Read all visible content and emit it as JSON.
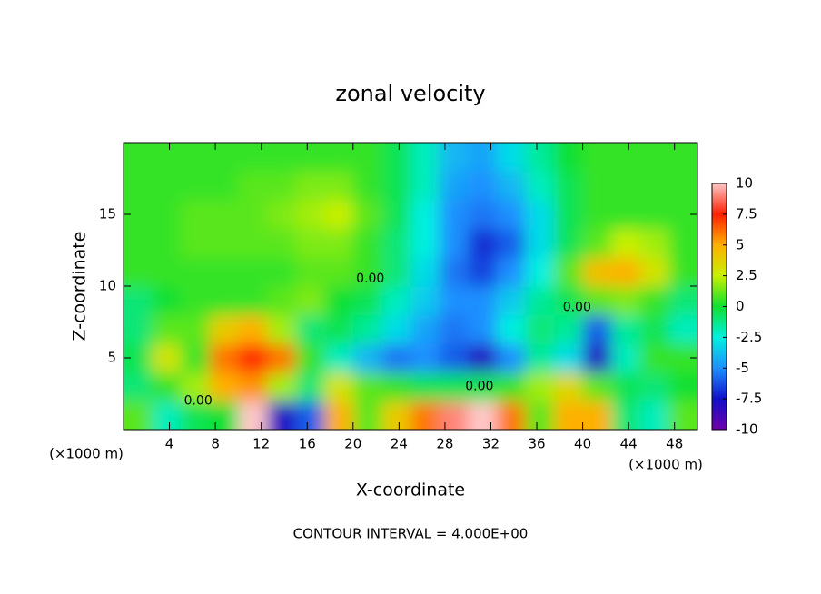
{
  "chart_data": {
    "type": "heatmap",
    "title": "zonal velocity",
    "x_label": "X-coordinate",
    "y_label": "Z-coordinate",
    "x_unit_labels": [
      "(×1000 m)",
      "(×1000 m)"
    ],
    "footer": "CONTOUR INTERVAL = 4.000E+00",
    "annotations": [
      {
        "text": "0.00",
        "x": 21.5,
        "y": 10.5
      },
      {
        "text": "0.00",
        "x": 39.5,
        "y": 8.5
      },
      {
        "text": "0.00",
        "x": 31.0,
        "y": 3.0
      },
      {
        "text": "0.00",
        "x": 6.5,
        "y": 2.0
      }
    ],
    "xlim": [
      0,
      50
    ],
    "ylim": [
      0,
      20
    ],
    "xticks": [
      4,
      8,
      12,
      16,
      20,
      24,
      28,
      32,
      36,
      40,
      44,
      48
    ],
    "yticks": [
      5,
      10,
      15
    ],
    "x": [
      1.25,
      3.75,
      6.25,
      8.75,
      11.25,
      13.75,
      16.25,
      18.75,
      21.25,
      23.75,
      26.25,
      28.75,
      31.25,
      33.75,
      36.25,
      38.75,
      41.25,
      43.75,
      46.25,
      48.75
    ],
    "y": [
      1,
      3,
      5,
      7,
      9,
      11,
      13,
      15,
      17,
      19
    ],
    "z": [
      [
        1,
        -2,
        -0.5,
        0,
        10,
        -8,
        -6,
        5,
        1,
        4,
        6,
        9,
        11,
        6,
        1,
        5,
        5,
        -1,
        -2,
        1
      ],
      [
        -1,
        0.5,
        2,
        5,
        5.5,
        2,
        -1,
        3,
        1,
        0.5,
        -0.5,
        -0.5,
        -0.5,
        0.5,
        2,
        3.5,
        1,
        -0.5,
        -1,
        0
      ],
      [
        -0.5,
        3,
        0.5,
        6,
        7.5,
        6,
        0.5,
        -2,
        -4,
        -5.5,
        -5,
        -6,
        -8,
        -5,
        -1.5,
        -3,
        -8,
        -2,
        0.5,
        0.5
      ],
      [
        -1,
        1,
        1,
        4,
        5,
        2,
        -1,
        -0.5,
        -1.5,
        -3,
        -4.5,
        -5.5,
        -5,
        -2.5,
        -1,
        -1.5,
        -6,
        -1.5,
        -0.5,
        -2
      ],
      [
        -1,
        0,
        0.5,
        0.5,
        0.5,
        1,
        1.5,
        0,
        -0.5,
        -2,
        -3.5,
        -5,
        -5,
        -3.5,
        -1.5,
        -0.5,
        1,
        1.5,
        0.5,
        -1
      ],
      [
        0.5,
        0.5,
        0.5,
        0.5,
        0.5,
        0.5,
        1,
        1,
        0.5,
        -1,
        -3,
        -5.5,
        -6.5,
        -5,
        -2.5,
        1,
        4.5,
        5,
        3,
        0.5
      ],
      [
        0.5,
        0.5,
        1,
        1,
        1,
        1,
        1.5,
        1.5,
        0.5,
        -1,
        -2.5,
        -5,
        -7,
        -6,
        -3,
        -0.5,
        1,
        2.5,
        2,
        0.5
      ],
      [
        0.5,
        0.5,
        1,
        1,
        1,
        1.5,
        2,
        2.5,
        1,
        -0.5,
        -2.5,
        -5,
        -5.5,
        -5,
        -3,
        -0.5,
        0.5,
        0.5,
        0.5,
        0.5
      ],
      [
        0.5,
        0.5,
        0.5,
        0.5,
        1,
        1,
        1.5,
        1.5,
        0.5,
        -0.5,
        -2,
        -4.5,
        -5,
        -4,
        -2,
        -0.5,
        0.5,
        0.5,
        0.5,
        0.5
      ],
      [
        0.5,
        0.5,
        0.5,
        0.5,
        0.5,
        0.5,
        0.5,
        0.5,
        0.5,
        -0.5,
        -2,
        -4,
        -4.5,
        -3,
        -1.5,
        0,
        0.5,
        0.5,
        0.5,
        0.5
      ]
    ],
    "colorbar": {
      "lim": [
        -10,
        10
      ],
      "ticks": [
        10,
        7.5,
        5,
        2.5,
        0,
        -2.5,
        -5,
        -7.5,
        -10
      ],
      "colors": [
        "#7000a8",
        "#1010c8",
        "#1e90ff",
        "#00f0e0",
        "#10e030",
        "#c8f000",
        "#ffb000",
        "#ff2000",
        "#ffc8c8"
      ]
    }
  }
}
